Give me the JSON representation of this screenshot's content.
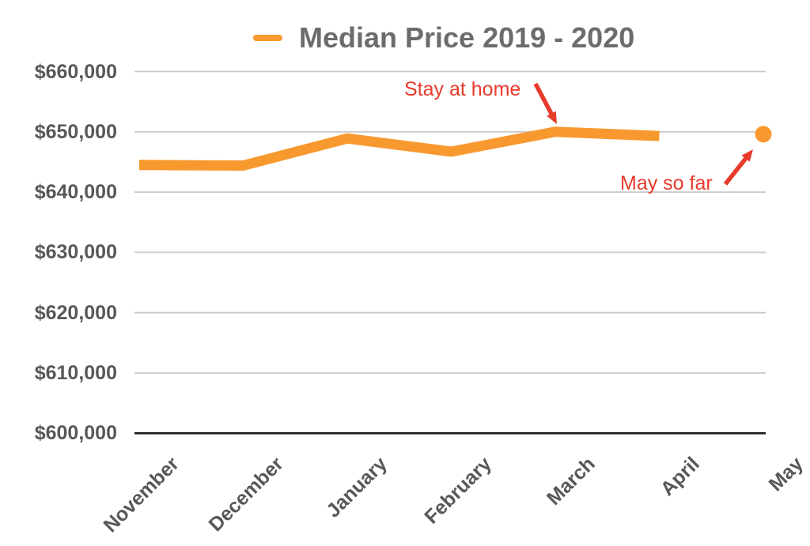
{
  "chart_data": {
    "type": "line",
    "title": "Median Price 2019 - 2020",
    "legend": {
      "position": "top",
      "entries": [
        "Median Price 2019 - 2020"
      ]
    },
    "categories": [
      "November",
      "December",
      "January",
      "February",
      "March",
      "April",
      "May"
    ],
    "series": [
      {
        "name": "Median Price 2019 - 2020",
        "values": [
          644500,
          644400,
          648900,
          646700,
          650000,
          649300,
          null
        ]
      }
    ],
    "extra_point": {
      "category": "May",
      "value": 649600
    },
    "annotations": [
      {
        "text": "Stay at home",
        "target_category": "March",
        "target_value": 650000
      },
      {
        "text": "May so far",
        "target_category": "May",
        "target_value": 649600
      }
    ],
    "xlabel": "",
    "ylabel": "",
    "ylim": [
      600000,
      660000
    ],
    "y_ticks": [
      {
        "label": "$660,000",
        "value": 660000
      },
      {
        "label": "$650,000",
        "value": 650000
      },
      {
        "label": "$640,000",
        "value": 640000
      },
      {
        "label": "$630,000",
        "value": 630000
      },
      {
        "label": "$620,000",
        "value": 620000
      },
      {
        "label": "$610,000",
        "value": 610000
      },
      {
        "label": "$600,000",
        "value": 600000
      }
    ],
    "grid": true,
    "colors": {
      "series": "#F8992F",
      "annotation": "#E73B2B",
      "grid": "#C9C9C9",
      "axis": "#1A1A1A",
      "title": "#6C6C6E",
      "tick_labels": "#58585A"
    }
  }
}
